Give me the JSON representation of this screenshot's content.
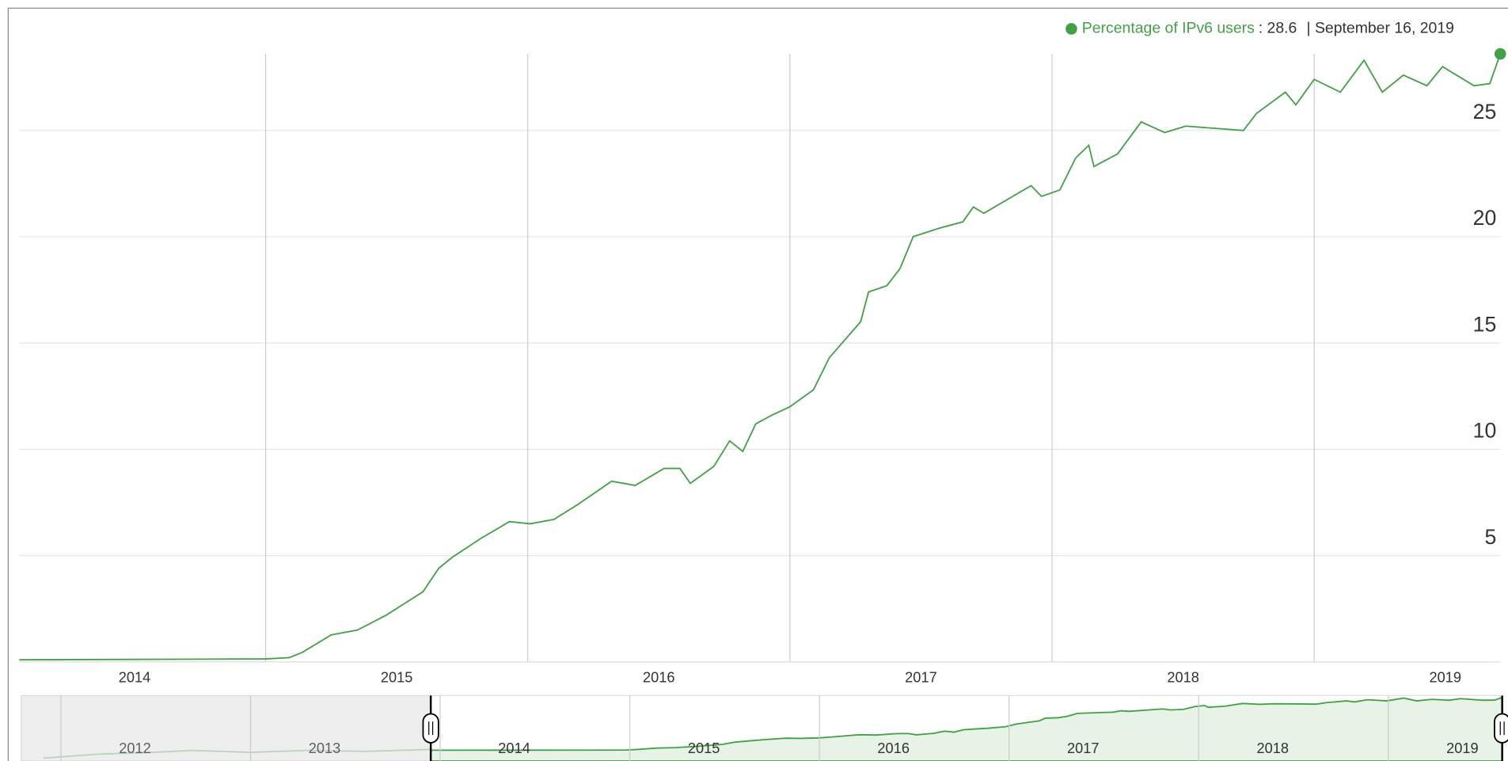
{
  "chart_data": {
    "type": "line",
    "series": [
      {
        "name": "Percentage of IPv6 users",
        "color": "#43a047",
        "x": [
          2013.56,
          2014.5,
          2014.59,
          2014.64,
          2014.75,
          2014.85,
          2014.96,
          2015.1,
          2015.16,
          2015.21,
          2015.32,
          2015.43,
          2015.51,
          2015.6,
          2015.69,
          2015.82,
          2015.91,
          2016.02,
          2016.08,
          2016.12,
          2016.21,
          2016.27,
          2016.32,
          2016.37,
          2016.43,
          2016.5,
          2016.59,
          2016.65,
          2016.77,
          2016.8,
          2016.87,
          2016.92,
          2016.97,
          2017.07,
          2017.16,
          2017.2,
          2017.24,
          2017.42,
          2017.46,
          2017.53,
          2017.59,
          2017.64,
          2017.66,
          2017.75,
          2017.84,
          2017.93,
          2018.01,
          2018.23,
          2018.28,
          2018.39,
          2018.43,
          2018.5,
          2018.6,
          2018.69,
          2018.76,
          2018.84,
          2018.93,
          2018.99,
          2019.11,
          2019.17,
          2019.21
        ],
        "values": [
          0.1,
          0.14,
          0.2,
          0.45,
          1.27,
          1.5,
          2.2,
          3.3,
          4.4,
          4.9,
          5.8,
          6.6,
          6.5,
          6.7,
          7.4,
          8.5,
          8.3,
          9.1,
          9.1,
          8.4,
          9.2,
          10.4,
          9.9,
          11.2,
          11.6,
          12.0,
          12.8,
          14.3,
          16.0,
          17.4,
          17.7,
          18.5,
          20.0,
          20.4,
          20.7,
          21.4,
          21.1,
          22.4,
          21.9,
          22.2,
          23.7,
          24.3,
          23.3,
          23.9,
          25.4,
          24.9,
          25.2,
          25.0,
          25.8,
          26.8,
          26.2,
          27.4,
          26.8,
          28.3,
          26.8,
          27.6,
          27.1,
          28.0,
          27.1,
          27.2,
          28.6
        ]
      }
    ],
    "current_value": 28.6,
    "date": "September 16, 2019",
    "xlim": [
      2013.56,
      2019.21
    ],
    "xticks": [
      2014,
      2015,
      2016,
      2017,
      2018,
      2019
    ],
    "x_grid_lines": [
      2014.5,
      2015.5,
      2016.5,
      2017.5,
      2018.5
    ],
    "ylim": [
      0,
      28.6
    ],
    "yticks": [
      5,
      10,
      15,
      20,
      25
    ],
    "grid": true,
    "navigator": {
      "xlim": [
        2011.4,
        2019.2
      ],
      "xticks": [
        2012,
        2013,
        2014,
        2015,
        2016,
        2017,
        2018,
        2019
      ],
      "selection": [
        2013.56,
        2019.21
      ]
    }
  }
}
